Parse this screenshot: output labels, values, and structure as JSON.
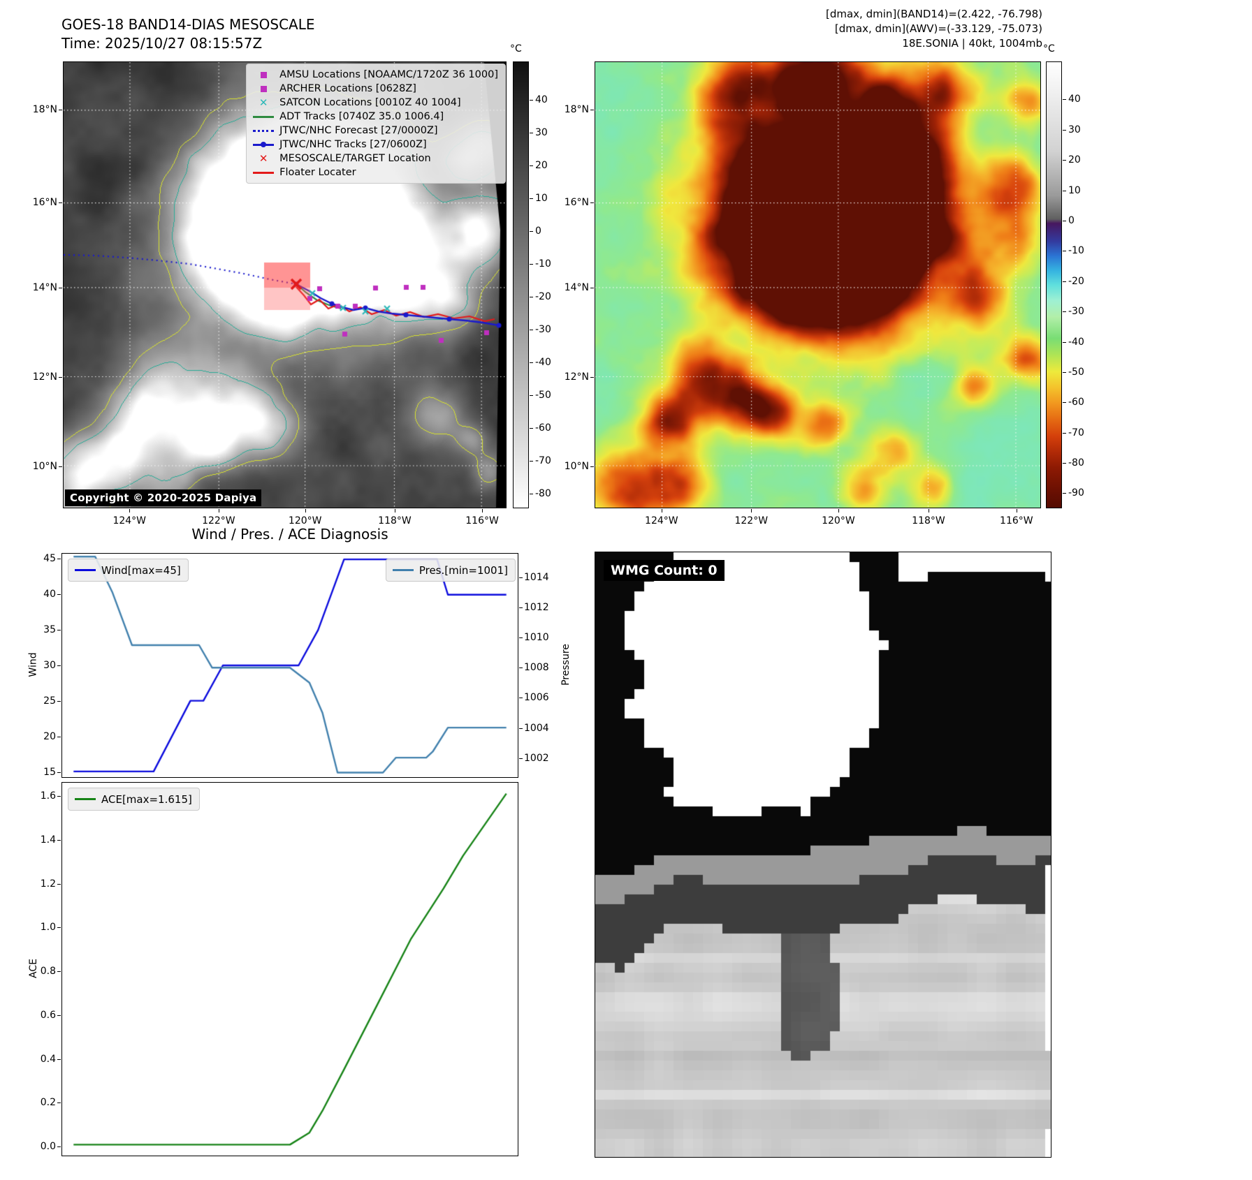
{
  "header": {
    "title": "GOES-18 BAND14-DIAS MESOSCALE",
    "time_line": "Time: 2025/10/27 08:15:57Z",
    "info_lines": [
      "[dmax, dmin](BAND14)=(2.422, -76.798)",
      "[dmax, dmin](AWV)=(-33.129, -75.073)",
      "18E.SONIA | 40kt, 1004mb"
    ]
  },
  "ir_panel": {
    "legend_items": [
      {
        "label": "AMSU Locations [NOAAMC/1720Z 36 1000]",
        "marker": "square",
        "color": "#bf2fbf"
      },
      {
        "label": "ARCHER Locations [0628Z]",
        "marker": "square",
        "color": "#bf2fbf"
      },
      {
        "label": "SATCON Locations [0010Z 40 1004]",
        "marker": "x",
        "color": "#2cb8b8"
      },
      {
        "label": "ADT Tracks [0740Z 35.0 1006.4]",
        "marker": "line",
        "color": "#2e8b40"
      },
      {
        "label": "JTWC/NHC Forecast [27/0000Z]",
        "marker": "dotted",
        "color": "#1a1acc"
      },
      {
        "label": "JTWC/NHC Tracks [27/0600Z]",
        "marker": "line-dot",
        "color": "#1a1acc"
      },
      {
        "label": "MESOSCALE/TARGET Location",
        "marker": "x",
        "color": "#e31a1a"
      },
      {
        "label": "Floater Locater",
        "marker": "line",
        "color": "#e31a1a"
      }
    ],
    "copyright": "Copyright © 2020-2025 Dapiya",
    "lat_ticks": [
      "18°N",
      "16°N",
      "14°N",
      "12°N",
      "10°N"
    ],
    "lon_ticks": [
      "124°W",
      "122°W",
      "120°W",
      "118°W",
      "116°W"
    ],
    "colorbar": {
      "unit": "°C",
      "ticks": [
        40,
        30,
        20,
        10,
        0,
        -10,
        -20,
        -30,
        -40,
        -50,
        -60,
        -70,
        -80
      ],
      "gradient": [
        "#101010",
        "#ffffff"
      ]
    }
  },
  "awv_panel": {
    "lat_ticks": [
      "18°N",
      "16°N",
      "14°N",
      "12°N",
      "10°N"
    ],
    "lon_ticks": [
      "124°W",
      "122°W",
      "120°W",
      "118°W",
      "116°W"
    ],
    "colorbar": {
      "unit": "°C",
      "ticks": [
        40,
        30,
        20,
        10,
        0,
        -10,
        -20,
        -30,
        -40,
        -50,
        -60,
        -70,
        -80,
        -90
      ],
      "gradient": [
        [
          0.0,
          "#ffffff"
        ],
        [
          0.2,
          "#d2d2d2"
        ],
        [
          0.3,
          "#9a9a9a"
        ],
        [
          0.352,
          "#606060"
        ],
        [
          0.362,
          "#47175f"
        ],
        [
          0.402,
          "#333a9e"
        ],
        [
          0.435,
          "#2b74d4"
        ],
        [
          0.468,
          "#35b3e0"
        ],
        [
          0.5,
          "#5fdfdd"
        ],
        [
          0.535,
          "#9ef0d3"
        ],
        [
          0.572,
          "#b2efa9"
        ],
        [
          0.62,
          "#79dd74"
        ],
        [
          0.655,
          "#abe457"
        ],
        [
          0.695,
          "#eeea3c"
        ],
        [
          0.73,
          "#f4c32c"
        ],
        [
          0.768,
          "#f1951e"
        ],
        [
          0.805,
          "#e46712"
        ],
        [
          0.84,
          "#d4400b"
        ],
        [
          0.875,
          "#b12a07"
        ],
        [
          0.91,
          "#8d1a03"
        ],
        [
          0.96,
          "#6c1002"
        ],
        [
          1.0,
          "#540b01"
        ]
      ]
    }
  },
  "charts_title": "Wind / Pres. / ACE Diagnosis",
  "chart_data": [
    {
      "type": "line",
      "title": "Wind / Pres. / ACE Diagnosis",
      "x_range": [
        0,
        1
      ],
      "series": [
        {
          "name": "Wind[max=45]",
          "color": "#0b0bdd",
          "axis": "left",
          "points": [
            [
              0,
              15
            ],
            [
              0.185,
              15
            ],
            [
              0.27,
              25
            ],
            [
              0.3,
              25
            ],
            [
              0.345,
              30
            ],
            [
              0.52,
              30
            ],
            [
              0.565,
              35
            ],
            [
              0.625,
              45
            ],
            [
              0.84,
              45
            ],
            [
              0.865,
              40
            ],
            [
              1,
              40
            ]
          ]
        },
        {
          "name": "Pres.[min=1001]",
          "color": "#4180ad",
          "axis": "right",
          "points": [
            [
              0,
              1015.4
            ],
            [
              0.05,
              1015.4
            ],
            [
              0.09,
              1013
            ],
            [
              0.135,
              1009.5
            ],
            [
              0.29,
              1009.5
            ],
            [
              0.32,
              1008
            ],
            [
              0.5,
              1008
            ],
            [
              0.545,
              1007
            ],
            [
              0.575,
              1005
            ],
            [
              0.61,
              1001
            ],
            [
              0.715,
              1001
            ],
            [
              0.745,
              1002
            ],
            [
              0.815,
              1002
            ],
            [
              0.83,
              1002.4
            ],
            [
              0.865,
              1004
            ],
            [
              1,
              1004
            ]
          ]
        }
      ],
      "left_axis": {
        "label": "Wind",
        "ticks": [
          15,
          20,
          25,
          30,
          35,
          40,
          45
        ],
        "range": [
          14.2,
          45.8
        ]
      },
      "right_axis": {
        "label": "Pressure",
        "ticks": [
          1002,
          1004,
          1006,
          1008,
          1010,
          1012,
          1014
        ],
        "range": [
          1000.7,
          1015.6
        ]
      }
    },
    {
      "type": "line",
      "series": [
        {
          "name": "ACE[max=1.615]",
          "color": "#168316",
          "axis": "left",
          "points": [
            [
              0,
              0.005
            ],
            [
              0.5,
              0.005
            ],
            [
              0.545,
              0.06
            ],
            [
              0.575,
              0.16
            ],
            [
              0.625,
              0.35
            ],
            [
              0.7,
              0.64
            ],
            [
              0.78,
              0.95
            ],
            [
              0.855,
              1.18
            ],
            [
              0.9,
              1.33
            ],
            [
              1,
              1.615
            ]
          ]
        }
      ],
      "left_axis": {
        "label": "ACE",
        "ticks": [
          "0.0",
          "0.2",
          "0.4",
          "0.6",
          "0.8",
          "1.0",
          "1.2",
          "1.4",
          "1.6"
        ],
        "range": [
          -0.045,
          1.665
        ]
      }
    }
  ],
  "wmg_panel": {
    "count_label": "WMG Count: 0"
  }
}
